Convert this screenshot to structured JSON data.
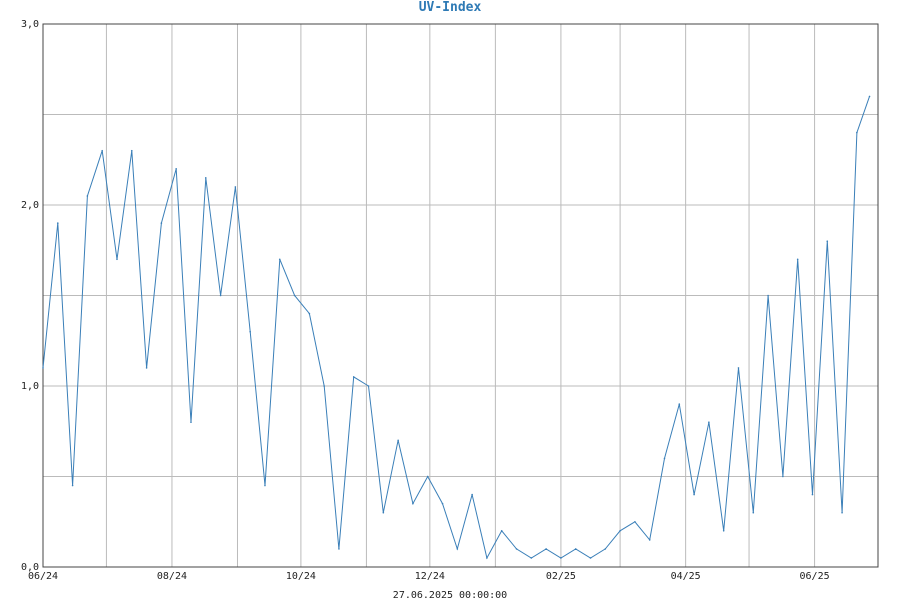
{
  "chart_data": {
    "type": "line",
    "title": "UV-Index",
    "xlabel": "",
    "ylabel": "",
    "footer": "27.06.2025 00:00:00",
    "x_tick_labels": [
      "06/24",
      "08/24",
      "10/24",
      "12/24",
      "02/25",
      "04/25",
      "06/25"
    ],
    "y_tick_labels": [
      "0,0",
      "1,0",
      "2,0",
      "3,0"
    ],
    "ylim": [
      0,
      3
    ],
    "xlim": [
      "2024-06-01",
      "2025-07-01"
    ],
    "grid": true,
    "colors": {
      "line": "#3a7fb8",
      "title": "#2e7ab5",
      "grid": "#bbbbbb",
      "axis": "#444444"
    },
    "series": [
      {
        "x": [
          "2024-06-01",
          "2024-06-08",
          "2024-06-15",
          "2024-06-22",
          "2024-06-29",
          "2024-07-06",
          "2024-07-13",
          "2024-07-20",
          "2024-07-27",
          "2024-08-03",
          "2024-08-10",
          "2024-08-17",
          "2024-08-24",
          "2024-08-31",
          "2024-09-07",
          "2024-09-14",
          "2024-09-21",
          "2024-09-28",
          "2024-10-05",
          "2024-10-12",
          "2024-10-19",
          "2024-10-26",
          "2024-11-02",
          "2024-11-09",
          "2024-11-16",
          "2024-11-23",
          "2024-11-30",
          "2024-12-07",
          "2024-12-14",
          "2024-12-21",
          "2024-12-28",
          "2025-01-04",
          "2025-01-11",
          "2025-01-18",
          "2025-01-25",
          "2025-02-01",
          "2025-02-08",
          "2025-02-15",
          "2025-02-22",
          "2025-03-01",
          "2025-03-08",
          "2025-03-15",
          "2025-03-22",
          "2025-03-29",
          "2025-04-05",
          "2025-04-12",
          "2025-04-19",
          "2025-04-26",
          "2025-05-03",
          "2025-05-10",
          "2025-05-17",
          "2025-05-24",
          "2025-05-31",
          "2025-06-07",
          "2025-06-14",
          "2025-06-21",
          "2025-06-27"
        ],
        "values": [
          1.1,
          1.9,
          0.45,
          2.05,
          2.3,
          1.7,
          2.3,
          1.1,
          1.9,
          2.2,
          0.8,
          2.15,
          1.5,
          2.1,
          1.3,
          0.45,
          1.7,
          1.5,
          1.4,
          1.0,
          0.1,
          1.05,
          1.0,
          0.3,
          0.7,
          0.35,
          0.5,
          0.35,
          0.1,
          0.4,
          0.05,
          0.2,
          0.1,
          0.05,
          0.1,
          0.05,
          0.1,
          0.05,
          0.1,
          0.2,
          0.25,
          0.15,
          0.6,
          0.9,
          0.4,
          0.8,
          0.2,
          1.1,
          0.3,
          1.5,
          0.5,
          1.7,
          0.4,
          1.8,
          0.3,
          2.4,
          2.6
        ]
      }
    ]
  }
}
